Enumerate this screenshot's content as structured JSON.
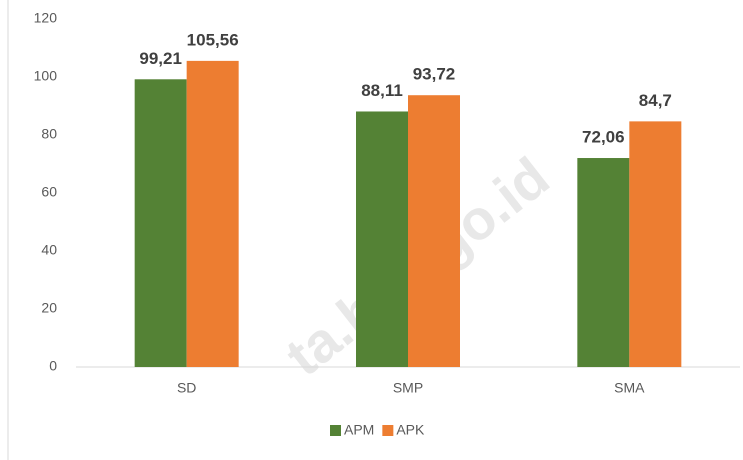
{
  "chart_data": {
    "type": "bar",
    "categories": [
      "SD",
      "SMP",
      "SMA"
    ],
    "series": [
      {
        "name": "APM",
        "color": "#548235",
        "values": [
          99.21,
          88.11,
          72.06
        ],
        "value_labels": [
          "99,21",
          "88,11",
          "72,06"
        ]
      },
      {
        "name": "APK",
        "color": "#ed7d31",
        "values": [
          105.56,
          93.72,
          84.7
        ],
        "value_labels": [
          "105,56",
          "93,72",
          "84,7"
        ]
      }
    ],
    "ylim": [
      0,
      120
    ],
    "yticks": [
      0,
      20,
      40,
      60,
      80,
      100,
      120
    ],
    "grid": false,
    "legend": "bottom",
    "watermark": "ta.bps.go.id"
  }
}
